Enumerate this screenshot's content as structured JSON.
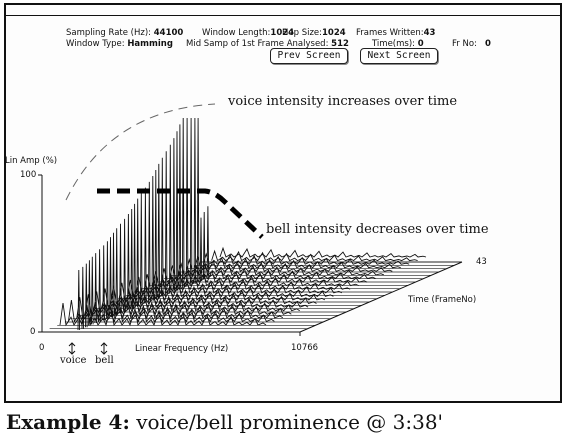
{
  "header": {
    "sampling_rate_label": "Sampling Rate (Hz):",
    "sampling_rate_value": "44100",
    "window_length_label": "Window Length:",
    "window_length_value": "1024",
    "hop_size_label": "Hop Size:",
    "hop_size_value": "1024",
    "frames_written_label": "Frames Written:",
    "frames_written_value": "43",
    "window_type_label": "Window Type:",
    "window_type_value": "Hamming",
    "mid_samp_label": "Mid Samp of 1st Frame Analysed:",
    "mid_samp_value": "512",
    "time_label": "Time(ms):",
    "time_value": "0",
    "fr_no_label": "Fr No:",
    "fr_no_value": "0"
  },
  "buttons": {
    "prev_screen": "Prev Screen",
    "next_screen": "Next Screen"
  },
  "plot": {
    "y_axis_label": "Lin Amp (%)",
    "y_tick_max": "100",
    "y_tick_min": "0",
    "x_axis_label": "Linear Frequency (Hz)",
    "x_tick_min": "0",
    "x_tick_max": "10766",
    "depth_axis_label": "Time (FrameNo)",
    "depth_tick_max": "43",
    "marker_voice": "voice",
    "marker_bell": "bell"
  },
  "annotations": {
    "voice": "voice intensity increases over time",
    "bell": "bell intensity decreases over time"
  },
  "caption": {
    "label": "Example 4:",
    "text": "voice/bell  prominence @ 3:38'"
  }
}
